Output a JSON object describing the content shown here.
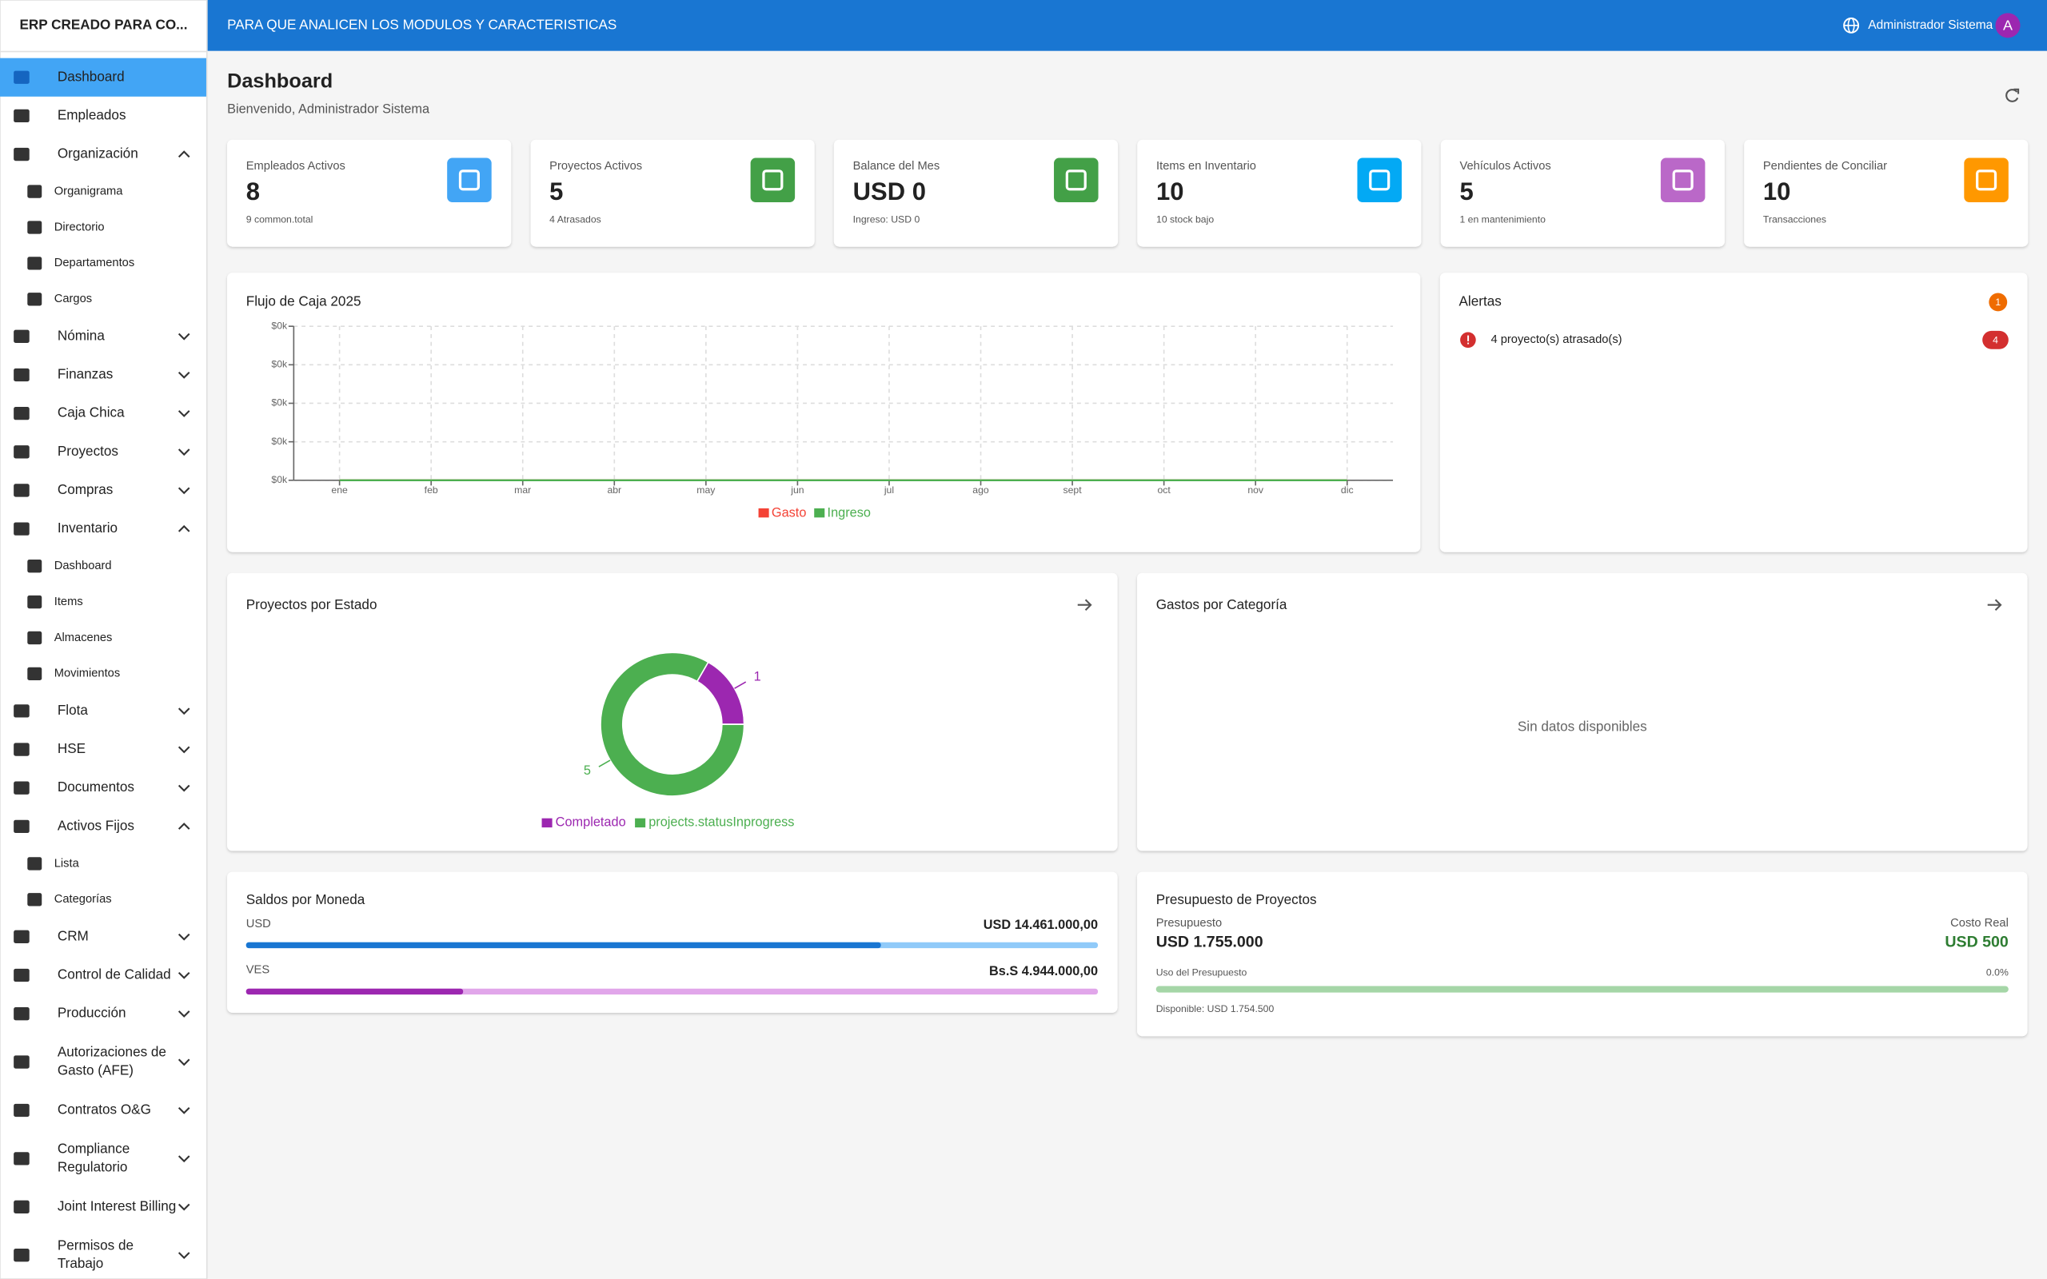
{
  "app": {
    "title": "ERP CREADO PARA CO...",
    "banner": "PARA QUE ANALICEN LOS MODULOS Y CARACTERISTICAS",
    "user": "Administrador Sistema",
    "avatar": "A"
  },
  "sidebar": {
    "items": [
      {
        "label": "Dashboard",
        "active": true
      },
      {
        "label": "Empleados"
      },
      {
        "label": "Organización",
        "expanded": true,
        "children": [
          "Organigrama",
          "Directorio",
          "Departamentos",
          "Cargos"
        ]
      },
      {
        "label": "Nómina",
        "expanded": false
      },
      {
        "label": "Finanzas",
        "expanded": false
      },
      {
        "label": "Caja Chica",
        "expanded": false
      },
      {
        "label": "Proyectos",
        "expanded": false
      },
      {
        "label": "Compras",
        "expanded": false
      },
      {
        "label": "Inventario",
        "expanded": true,
        "children": [
          "Dashboard",
          "Items",
          "Almacenes",
          "Movimientos"
        ]
      },
      {
        "label": "Flota",
        "expanded": false
      },
      {
        "label": "HSE",
        "expanded": false
      },
      {
        "label": "Documentos",
        "expanded": false
      },
      {
        "label": "Activos Fijos",
        "expanded": true,
        "children": [
          "Lista",
          "Categorías"
        ]
      },
      {
        "label": "CRM",
        "expanded": false
      },
      {
        "label": "Control de Calidad",
        "expanded": false
      },
      {
        "label": "Producción",
        "expanded": false
      },
      {
        "label": [
          "Autorizaciones de",
          "Gasto (AFE)"
        ],
        "expanded": false
      },
      {
        "label": "Contratos O&G",
        "expanded": false
      },
      {
        "label": [
          "Compliance",
          "Regulatorio"
        ],
        "expanded": false
      },
      {
        "label": "Joint Interest Billing",
        "expanded": false
      },
      {
        "label": [
          "Permisos de",
          "Trabajo"
        ],
        "expanded": false
      }
    ]
  },
  "page": {
    "title": "Dashboard",
    "subtitle": "Bienvenido, Administrador Sistema"
  },
  "stats": [
    {
      "label": "Empleados Activos",
      "value": 8,
      "note": "9 common.total",
      "color": "#42a5f5"
    },
    {
      "label": "Proyectos Activos",
      "value": 5,
      "note": "4 Atrasados",
      "color": "#43a047"
    },
    {
      "label": "Balance del Mes",
      "value": "USD 0",
      "note": "Ingreso: USD 0",
      "color": "#43a047"
    },
    {
      "label": "Items en Inventario",
      "value": 10,
      "note": "10 stock bajo",
      "color": "#03a9f4"
    },
    {
      "label": "Vehículos Activos",
      "value": 5,
      "note": "1 en mantenimiento",
      "color": "#ba68c8"
    },
    {
      "label": "Pendientes de Conciliar",
      "value": 10,
      "note": "Transacciones",
      "color": "#ff9800"
    }
  ],
  "cash_flow": {
    "type": "line",
    "title": "Flujo de Caja 2025",
    "categories": [
      "ene",
      "feb",
      "mar",
      "abr",
      "may",
      "jun",
      "jul",
      "ago",
      "sept",
      "oct",
      "nov",
      "dic"
    ],
    "series": [
      {
        "name": "Gasto",
        "color": "#f44336",
        "values": [
          0,
          0,
          0,
          0,
          0,
          0,
          0,
          0,
          0,
          0,
          0,
          0
        ]
      },
      {
        "name": "Ingreso",
        "color": "#4caf50",
        "values": [
          0,
          0,
          0,
          0,
          0,
          0,
          0,
          0,
          0,
          0,
          0,
          0
        ]
      }
    ],
    "ylim": [
      0,
      4
    ],
    "yticks": [
      {
        "value": 0,
        "label": "$0k"
      },
      {
        "value": 1,
        "label": "$0k"
      },
      {
        "value": 2,
        "label": "$0k"
      },
      {
        "value": 3,
        "label": "$0k"
      },
      {
        "value": 4,
        "label": "$0k"
      }
    ],
    "grid": true
  },
  "alerts": {
    "title": "Alertas",
    "count": 1,
    "items": [
      {
        "text": "4 proyecto(s) atrasado(s)",
        "count": 4
      }
    ]
  },
  "projects_by_status": {
    "type": "pie",
    "title": "Proyectos por Estado",
    "categories": [
      "Completado",
      "projects.statusInprogress"
    ],
    "values": [
      1,
      5
    ],
    "colors": [
      "#9c27b0",
      "#4caf50"
    ]
  },
  "expenses_by_category": {
    "title": "Gastos por Categoría",
    "empty": "Sin datos disponibles"
  },
  "balances": {
    "title": "Saldos por Moneda",
    "rows": [
      {
        "currency": "USD",
        "value": 14461000,
        "label": "USD 14.461.000,00",
        "color": "#1976d2",
        "track": "#90caf9"
      },
      {
        "currency": "VES",
        "value": 4944000,
        "label": "Bs.S 4.944.000,00",
        "color": "#9c27b0",
        "track": "#e1a6ea"
      }
    ]
  },
  "budget": {
    "title": "Presupuesto de Proyectos",
    "budget_label": "Presupuesto",
    "budget": "USD 1.755.000",
    "actual_label": "Costo Real",
    "actual": "USD 500",
    "usage_label": "Uso del Presupuesto",
    "usage": {
      "value": 0,
      "label": "0.0%"
    },
    "available": "Disponible: USD 1.754.500"
  }
}
